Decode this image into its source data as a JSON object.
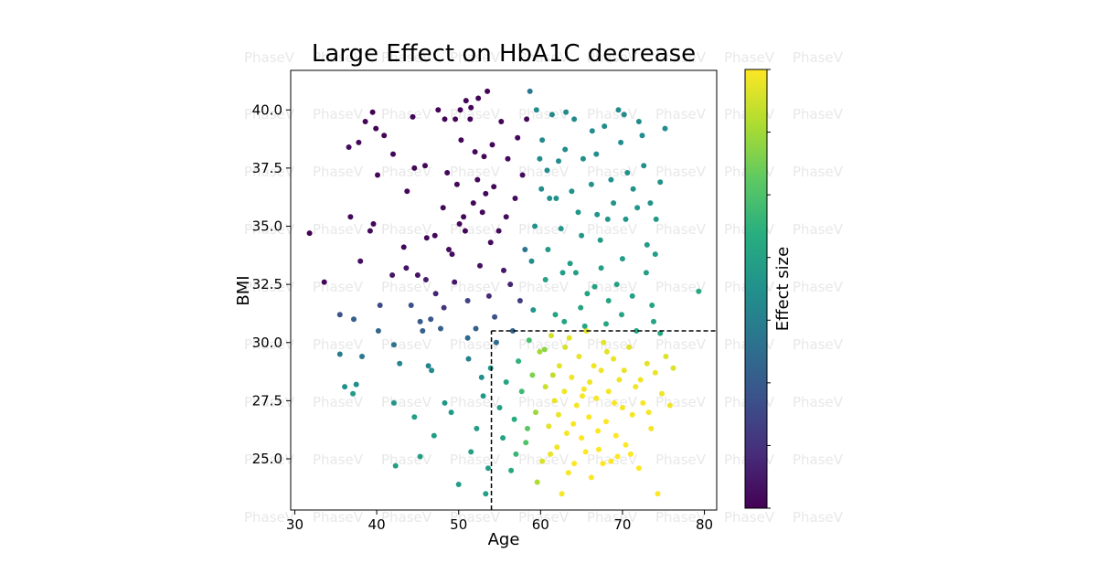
{
  "chart_data": {
    "type": "scatter",
    "title": "Large Effect on HbA1C decrease",
    "xlabel": "Age",
    "ylabel": "BMI",
    "xlim": [
      29.5,
      81.5
    ],
    "ylim": [
      22.8,
      41.7
    ],
    "xticks": [
      30,
      40,
      50,
      60,
      70,
      80
    ],
    "xtick_labels": [
      "30",
      "40",
      "50",
      "60",
      "70",
      "80"
    ],
    "yticks": [
      25.0,
      27.5,
      30.0,
      32.5,
      35.0,
      37.5,
      40.0
    ],
    "ytick_labels": [
      "25.0",
      "27.5",
      "30.0",
      "32.5",
      "35.0",
      "37.5",
      "40.0"
    ],
    "colorbar_label": "Effect size",
    "colormap": "viridis",
    "threshold_lines": {
      "age_min": 54,
      "bmi_max": 30.5
    },
    "watermark": "PhaseV",
    "points": [
      {
        "x": 31.8,
        "y": 34.7,
        "c": 0.0
      },
      {
        "x": 33.6,
        "y": 32.6,
        "c": 0.02
      },
      {
        "x": 35.5,
        "y": 31.2,
        "c": 0.25
      },
      {
        "x": 35.5,
        "y": 29.5,
        "c": 0.42
      },
      {
        "x": 36.1,
        "y": 28.1,
        "c": 0.5
      },
      {
        "x": 36.6,
        "y": 38.4,
        "c": 0.03
      },
      {
        "x": 36.8,
        "y": 35.4,
        "c": 0.02
      },
      {
        "x": 37.1,
        "y": 27.8,
        "c": 0.55
      },
      {
        "x": 37.5,
        "y": 28.2,
        "c": 0.48
      },
      {
        "x": 37.2,
        "y": 31.0,
        "c": 0.3
      },
      {
        "x": 37.8,
        "y": 38.6,
        "c": 0.02
      },
      {
        "x": 38.0,
        "y": 33.5,
        "c": 0.04
      },
      {
        "x": 38.2,
        "y": 29.4,
        "c": 0.4
      },
      {
        "x": 38.6,
        "y": 39.5,
        "c": 0.01
      },
      {
        "x": 39.2,
        "y": 34.8,
        "c": 0.03
      },
      {
        "x": 39.5,
        "y": 39.9,
        "c": 0.0
      },
      {
        "x": 39.6,
        "y": 35.1,
        "c": 0.02
      },
      {
        "x": 39.9,
        "y": 39.2,
        "c": 0.01
      },
      {
        "x": 40.2,
        "y": 30.5,
        "c": 0.33
      },
      {
        "x": 40.1,
        "y": 37.2,
        "c": 0.02
      },
      {
        "x": 40.4,
        "y": 31.6,
        "c": 0.22
      },
      {
        "x": 40.9,
        "y": 38.9,
        "c": 0.01
      },
      {
        "x": 41.9,
        "y": 32.9,
        "c": 0.06
      },
      {
        "x": 42.0,
        "y": 38.1,
        "c": 0.02
      },
      {
        "x": 42.1,
        "y": 29.9,
        "c": 0.38
      },
      {
        "x": 42.1,
        "y": 27.4,
        "c": 0.52
      },
      {
        "x": 42.3,
        "y": 24.7,
        "c": 0.56
      },
      {
        "x": 42.8,
        "y": 29.1,
        "c": 0.46
      },
      {
        "x": 43.3,
        "y": 34.1,
        "c": 0.02
      },
      {
        "x": 43.6,
        "y": 33.2,
        "c": 0.06
      },
      {
        "x": 43.7,
        "y": 36.5,
        "c": 0.02
      },
      {
        "x": 44.2,
        "y": 31.6,
        "c": 0.24
      },
      {
        "x": 44.4,
        "y": 39.7,
        "c": 0.01
      },
      {
        "x": 44.6,
        "y": 37.5,
        "c": 0.02
      },
      {
        "x": 45.0,
        "y": 32.9,
        "c": 0.05
      },
      {
        "x": 45.3,
        "y": 30.9,
        "c": 0.28
      },
      {
        "x": 45.6,
        "y": 30.5,
        "c": 0.3
      },
      {
        "x": 45.9,
        "y": 37.6,
        "c": 0.02
      },
      {
        "x": 46.0,
        "y": 32.7,
        "c": 0.08
      },
      {
        "x": 46.1,
        "y": 34.5,
        "c": 0.02
      },
      {
        "x": 46.3,
        "y": 29.0,
        "c": 0.45
      },
      {
        "x": 46.6,
        "y": 31.0,
        "c": 0.26
      },
      {
        "x": 46.7,
        "y": 28.8,
        "c": 0.47
      },
      {
        "x": 47.1,
        "y": 34.6,
        "c": 0.02
      },
      {
        "x": 47.2,
        "y": 32.1,
        "c": 0.1
      },
      {
        "x": 47.5,
        "y": 40.0,
        "c": 0.01
      },
      {
        "x": 47.8,
        "y": 30.6,
        "c": 0.3
      },
      {
        "x": 48.1,
        "y": 35.8,
        "c": 0.02
      },
      {
        "x": 48.2,
        "y": 31.5,
        "c": 0.15
      },
      {
        "x": 48.3,
        "y": 39.6,
        "c": 0.01
      },
      {
        "x": 48.3,
        "y": 27.4,
        "c": 0.52
      },
      {
        "x": 48.6,
        "y": 37.3,
        "c": 0.02
      },
      {
        "x": 48.8,
        "y": 34.0,
        "c": 0.03
      },
      {
        "x": 49.2,
        "y": 33.8,
        "c": 0.04
      },
      {
        "x": 49.5,
        "y": 32.6,
        "c": 0.06
      },
      {
        "x": 49.6,
        "y": 39.6,
        "c": 0.01
      },
      {
        "x": 49.8,
        "y": 36.8,
        "c": 0.02
      },
      {
        "x": 50.1,
        "y": 35.1,
        "c": 0.02
      },
      {
        "x": 50.2,
        "y": 40.0,
        "c": 0.01
      },
      {
        "x": 50.3,
        "y": 38.7,
        "c": 0.02
      },
      {
        "x": 50.6,
        "y": 35.4,
        "c": 0.02
      },
      {
        "x": 50.8,
        "y": 34.8,
        "c": 0.02
      },
      {
        "x": 50.9,
        "y": 40.4,
        "c": 0.01
      },
      {
        "x": 51.1,
        "y": 31.8,
        "c": 0.2
      },
      {
        "x": 51.1,
        "y": 30.2,
        "c": 0.34
      },
      {
        "x": 51.2,
        "y": 29.3,
        "c": 0.43
      },
      {
        "x": 51.4,
        "y": 39.6,
        "c": 0.01
      },
      {
        "x": 51.5,
        "y": 40.1,
        "c": 0.01
      },
      {
        "x": 51.8,
        "y": 36.0,
        "c": 0.02
      },
      {
        "x": 52.0,
        "y": 38.2,
        "c": 0.02
      },
      {
        "x": 52.1,
        "y": 30.6,
        "c": 0.3
      },
      {
        "x": 52.3,
        "y": 37.0,
        "c": 0.02
      },
      {
        "x": 52.4,
        "y": 40.5,
        "c": 0.01
      },
      {
        "x": 52.6,
        "y": 33.3,
        "c": 0.04
      },
      {
        "x": 52.8,
        "y": 28.5,
        "c": 0.49
      },
      {
        "x": 52.9,
        "y": 35.6,
        "c": 0.02
      },
      {
        "x": 53.1,
        "y": 38.0,
        "c": 0.02
      },
      {
        "x": 53.3,
        "y": 36.4,
        "c": 0.02
      },
      {
        "x": 53.5,
        "y": 40.8,
        "c": 0.01
      },
      {
        "x": 53.7,
        "y": 32.0,
        "c": 0.12
      },
      {
        "x": 53.9,
        "y": 34.3,
        "c": 0.03
      },
      {
        "x": 54.1,
        "y": 38.5,
        "c": 0.02
      },
      {
        "x": 54.3,
        "y": 36.7,
        "c": 0.02
      },
      {
        "x": 54.4,
        "y": 31.1,
        "c": 0.25
      },
      {
        "x": 54.6,
        "y": 30.0,
        "c": 0.35
      },
      {
        "x": 54.9,
        "y": 34.8,
        "c": 0.03
      },
      {
        "x": 55.2,
        "y": 39.5,
        "c": 0.01
      },
      {
        "x": 55.5,
        "y": 33.1,
        "c": 0.06
      },
      {
        "x": 55.8,
        "y": 35.4,
        "c": 0.03
      },
      {
        "x": 56.0,
        "y": 37.9,
        "c": 0.02
      },
      {
        "x": 56.3,
        "y": 32.5,
        "c": 0.1
      },
      {
        "x": 56.6,
        "y": 30.5,
        "c": 0.32
      },
      {
        "x": 56.9,
        "y": 36.2,
        "c": 0.03
      },
      {
        "x": 57.2,
        "y": 38.8,
        "c": 0.02
      },
      {
        "x": 57.5,
        "y": 31.8,
        "c": 0.18
      },
      {
        "x": 57.8,
        "y": 37.2,
        "c": 0.03
      },
      {
        "x": 58.1,
        "y": 34.0,
        "c": 0.38
      },
      {
        "x": 58.3,
        "y": 39.6,
        "c": 0.02
      },
      {
        "x": 58.7,
        "y": 40.8,
        "c": 0.4
      },
      {
        "x": 58.9,
        "y": 33.5,
        "c": 0.48
      },
      {
        "x": 59.1,
        "y": 31.4,
        "c": 0.52
      },
      {
        "x": 50.0,
        "y": 23.9,
        "c": 0.55
      },
      {
        "x": 51.5,
        "y": 25.3,
        "c": 0.56
      },
      {
        "x": 52.2,
        "y": 26.3,
        "c": 0.55
      },
      {
        "x": 53.0,
        "y": 27.7,
        "c": 0.54
      },
      {
        "x": 53.6,
        "y": 24.6,
        "c": 0.56
      },
      {
        "x": 53.3,
        "y": 23.5,
        "c": 0.56
      },
      {
        "x": 53.9,
        "y": 28.9,
        "c": 0.52
      },
      {
        "x": 44.6,
        "y": 26.8,
        "c": 0.55
      },
      {
        "x": 45.3,
        "y": 25.1,
        "c": 0.56
      },
      {
        "x": 47.0,
        "y": 26.0,
        "c": 0.55
      },
      {
        "x": 49.1,
        "y": 27.0,
        "c": 0.54
      },
      {
        "x": 55.0,
        "y": 27.2,
        "c": 0.56
      },
      {
        "x": 55.4,
        "y": 25.9,
        "c": 0.58
      },
      {
        "x": 55.8,
        "y": 28.3,
        "c": 0.58
      },
      {
        "x": 56.4,
        "y": 24.5,
        "c": 0.6
      },
      {
        "x": 56.8,
        "y": 26.7,
        "c": 0.62
      },
      {
        "x": 57.3,
        "y": 29.2,
        "c": 0.64
      },
      {
        "x": 57.7,
        "y": 27.9,
        "c": 0.68
      },
      {
        "x": 58.2,
        "y": 25.7,
        "c": 0.72
      },
      {
        "x": 58.6,
        "y": 30.1,
        "c": 0.7
      },
      {
        "x": 59.0,
        "y": 28.6,
        "c": 0.8
      },
      {
        "x": 59.4,
        "y": 27.0,
        "c": 0.85
      },
      {
        "x": 59.9,
        "y": 29.6,
        "c": 0.86
      },
      {
        "x": 60.2,
        "y": 24.9,
        "c": 0.94
      },
      {
        "x": 60.6,
        "y": 28.1,
        "c": 0.92
      },
      {
        "x": 61.0,
        "y": 26.4,
        "c": 0.96
      },
      {
        "x": 61.3,
        "y": 30.3,
        "c": 0.93
      },
      {
        "x": 61.7,
        "y": 27.5,
        "c": 0.97
      },
      {
        "x": 62.0,
        "y": 25.5,
        "c": 0.98
      },
      {
        "x": 62.3,
        "y": 29.0,
        "c": 0.96
      },
      {
        "x": 62.6,
        "y": 23.5,
        "c": 0.99
      },
      {
        "x": 62.9,
        "y": 27.9,
        "c": 0.98
      },
      {
        "x": 63.2,
        "y": 26.1,
        "c": 0.99
      },
      {
        "x": 63.5,
        "y": 30.2,
        "c": 0.96
      },
      {
        "x": 63.8,
        "y": 28.5,
        "c": 0.98
      },
      {
        "x": 64.1,
        "y": 24.8,
        "c": 1.0
      },
      {
        "x": 64.4,
        "y": 27.3,
        "c": 0.99
      },
      {
        "x": 64.7,
        "y": 29.4,
        "c": 0.97
      },
      {
        "x": 65.0,
        "y": 25.9,
        "c": 1.0
      },
      {
        "x": 65.3,
        "y": 28.0,
        "c": 0.99
      },
      {
        "x": 65.6,
        "y": 30.5,
        "c": 0.96
      },
      {
        "x": 65.9,
        "y": 26.8,
        "c": 1.0
      },
      {
        "x": 66.2,
        "y": 24.2,
        "c": 1.0
      },
      {
        "x": 66.5,
        "y": 29.0,
        "c": 0.98
      },
      {
        "x": 66.8,
        "y": 27.6,
        "c": 0.99
      },
      {
        "x": 67.1,
        "y": 25.4,
        "c": 1.0
      },
      {
        "x": 67.4,
        "y": 28.8,
        "c": 0.98
      },
      {
        "x": 67.7,
        "y": 30.0,
        "c": 0.96
      },
      {
        "x": 68.0,
        "y": 26.6,
        "c": 1.0
      },
      {
        "x": 68.3,
        "y": 27.9,
        "c": 0.99
      },
      {
        "x": 68.6,
        "y": 24.9,
        "c": 1.0
      },
      {
        "x": 68.9,
        "y": 29.3,
        "c": 0.97
      },
      {
        "x": 69.2,
        "y": 26.0,
        "c": 1.0
      },
      {
        "x": 69.6,
        "y": 28.4,
        "c": 0.98
      },
      {
        "x": 70.0,
        "y": 27.2,
        "c": 0.99
      },
      {
        "x": 70.4,
        "y": 25.6,
        "c": 1.0
      },
      {
        "x": 70.8,
        "y": 29.8,
        "c": 0.96
      },
      {
        "x": 71.2,
        "y": 26.9,
        "c": 0.99
      },
      {
        "x": 71.6,
        "y": 28.1,
        "c": 0.98
      },
      {
        "x": 72.0,
        "y": 24.6,
        "c": 1.0
      },
      {
        "x": 72.5,
        "y": 27.4,
        "c": 0.99
      },
      {
        "x": 73.0,
        "y": 29.1,
        "c": 0.96
      },
      {
        "x": 73.5,
        "y": 26.3,
        "c": 0.99
      },
      {
        "x": 74.0,
        "y": 28.7,
        "c": 0.97
      },
      {
        "x": 74.3,
        "y": 23.5,
        "c": 1.0
      },
      {
        "x": 74.8,
        "y": 27.8,
        "c": 0.98
      },
      {
        "x": 75.3,
        "y": 29.4,
        "c": 0.95
      },
      {
        "x": 75.8,
        "y": 27.3,
        "c": 0.98
      },
      {
        "x": 76.2,
        "y": 28.9,
        "c": 0.95
      },
      {
        "x": 60.5,
        "y": 29.7,
        "c": 0.82
      },
      {
        "x": 61.5,
        "y": 28.6,
        "c": 0.9
      },
      {
        "x": 62.2,
        "y": 26.9,
        "c": 0.97
      },
      {
        "x": 63.0,
        "y": 29.8,
        "c": 0.94
      },
      {
        "x": 64.0,
        "y": 26.5,
        "c": 0.99
      },
      {
        "x": 65.1,
        "y": 27.7,
        "c": 0.99
      },
      {
        "x": 66.0,
        "y": 28.3,
        "c": 0.98
      },
      {
        "x": 67.0,
        "y": 26.2,
        "c": 1.0
      },
      {
        "x": 68.1,
        "y": 29.6,
        "c": 0.96
      },
      {
        "x": 69.0,
        "y": 27.4,
        "c": 0.99
      },
      {
        "x": 70.2,
        "y": 28.8,
        "c": 0.97
      },
      {
        "x": 71.0,
        "y": 25.2,
        "c": 1.0
      },
      {
        "x": 72.2,
        "y": 28.4,
        "c": 0.98
      },
      {
        "x": 73.2,
        "y": 27.0,
        "c": 0.99
      },
      {
        "x": 61.2,
        "y": 25.2,
        "c": 0.97
      },
      {
        "x": 63.4,
        "y": 24.4,
        "c": 0.99
      },
      {
        "x": 65.5,
        "y": 25.3,
        "c": 1.0
      },
      {
        "x": 67.6,
        "y": 24.8,
        "c": 1.0
      },
      {
        "x": 69.4,
        "y": 25.1,
        "c": 1.0
      },
      {
        "x": 58.4,
        "y": 26.3,
        "c": 0.74
      },
      {
        "x": 59.6,
        "y": 24.0,
        "c": 0.88
      },
      {
        "x": 57.0,
        "y": 25.2,
        "c": 0.66
      },
      {
        "x": 59.5,
        "y": 40.0,
        "c": 0.48
      },
      {
        "x": 60.2,
        "y": 38.7,
        "c": 0.47
      },
      {
        "x": 60.8,
        "y": 37.4,
        "c": 0.48
      },
      {
        "x": 61.4,
        "y": 39.8,
        "c": 0.47
      },
      {
        "x": 61.9,
        "y": 36.2,
        "c": 0.5
      },
      {
        "x": 62.5,
        "y": 34.9,
        "c": 0.52
      },
      {
        "x": 63.0,
        "y": 38.3,
        "c": 0.48
      },
      {
        "x": 63.6,
        "y": 33.4,
        "c": 0.55
      },
      {
        "x": 64.1,
        "y": 39.6,
        "c": 0.47
      },
      {
        "x": 64.6,
        "y": 35.6,
        "c": 0.52
      },
      {
        "x": 65.2,
        "y": 37.9,
        "c": 0.49
      },
      {
        "x": 65.7,
        "y": 32.1,
        "c": 0.58
      },
      {
        "x": 66.2,
        "y": 36.8,
        "c": 0.51
      },
      {
        "x": 66.8,
        "y": 38.1,
        "c": 0.49
      },
      {
        "x": 67.3,
        "y": 34.4,
        "c": 0.54
      },
      {
        "x": 67.8,
        "y": 39.3,
        "c": 0.48
      },
      {
        "x": 68.3,
        "y": 31.8,
        "c": 0.58
      },
      {
        "x": 68.9,
        "y": 36.0,
        "c": 0.52
      },
      {
        "x": 69.5,
        "y": 40.0,
        "c": 0.47
      },
      {
        "x": 70.0,
        "y": 33.6,
        "c": 0.55
      },
      {
        "x": 70.6,
        "y": 37.3,
        "c": 0.5
      },
      {
        "x": 71.2,
        "y": 32.0,
        "c": 0.57
      },
      {
        "x": 71.8,
        "y": 35.8,
        "c": 0.53
      },
      {
        "x": 72.4,
        "y": 38.9,
        "c": 0.48
      },
      {
        "x": 73.0,
        "y": 34.2,
        "c": 0.54
      },
      {
        "x": 73.6,
        "y": 31.6,
        "c": 0.58
      },
      {
        "x": 74.1,
        "y": 35.3,
        "c": 0.53
      },
      {
        "x": 74.6,
        "y": 36.9,
        "c": 0.51
      },
      {
        "x": 75.2,
        "y": 39.2,
        "c": 0.48
      },
      {
        "x": 79.3,
        "y": 32.2,
        "c": 0.6
      },
      {
        "x": 60.6,
        "y": 32.7,
        "c": 0.57
      },
      {
        "x": 61.8,
        "y": 31.2,
        "c": 0.58
      },
      {
        "x": 62.9,
        "y": 30.9,
        "c": 0.58
      },
      {
        "x": 64.3,
        "y": 33.0,
        "c": 0.56
      },
      {
        "x": 65.4,
        "y": 30.7,
        "c": 0.59
      },
      {
        "x": 66.6,
        "y": 32.4,
        "c": 0.57
      },
      {
        "x": 68.0,
        "y": 30.8,
        "c": 0.59
      },
      {
        "x": 69.3,
        "y": 32.5,
        "c": 0.57
      },
      {
        "x": 70.4,
        "y": 35.3,
        "c": 0.52
      },
      {
        "x": 71.7,
        "y": 30.5,
        "c": 0.59
      },
      {
        "x": 72.9,
        "y": 33.0,
        "c": 0.55
      },
      {
        "x": 73.8,
        "y": 30.9,
        "c": 0.58
      },
      {
        "x": 59.3,
        "y": 35.0,
        "c": 0.5
      },
      {
        "x": 60.1,
        "y": 36.6,
        "c": 0.48
      },
      {
        "x": 62.2,
        "y": 37.8,
        "c": 0.48
      },
      {
        "x": 63.8,
        "y": 36.5,
        "c": 0.5
      },
      {
        "x": 65.0,
        "y": 34.6,
        "c": 0.53
      },
      {
        "x": 66.9,
        "y": 35.5,
        "c": 0.52
      },
      {
        "x": 68.6,
        "y": 37.0,
        "c": 0.5
      },
      {
        "x": 69.8,
        "y": 38.6,
        "c": 0.48
      },
      {
        "x": 71.3,
        "y": 36.6,
        "c": 0.51
      },
      {
        "x": 72.6,
        "y": 37.6,
        "c": 0.49
      },
      {
        "x": 74.0,
        "y": 33.8,
        "c": 0.55
      },
      {
        "x": 60.9,
        "y": 34.0,
        "c": 0.53
      },
      {
        "x": 62.7,
        "y": 33.0,
        "c": 0.55
      },
      {
        "x": 64.9,
        "y": 31.5,
        "c": 0.58
      },
      {
        "x": 67.4,
        "y": 33.2,
        "c": 0.56
      },
      {
        "x": 69.9,
        "y": 31.2,
        "c": 0.58
      },
      {
        "x": 74.6,
        "y": 30.4,
        "c": 0.6
      },
      {
        "x": 61.1,
        "y": 36.2,
        "c": 0.5
      },
      {
        "x": 63.1,
        "y": 39.9,
        "c": 0.47
      },
      {
        "x": 66.3,
        "y": 39.1,
        "c": 0.48
      },
      {
        "x": 70.2,
        "y": 39.8,
        "c": 0.47
      },
      {
        "x": 72.0,
        "y": 39.5,
        "c": 0.47
      },
      {
        "x": 73.4,
        "y": 36.0,
        "c": 0.51
      },
      {
        "x": 68.2,
        "y": 35.3,
        "c": 0.53
      },
      {
        "x": 59.9,
        "y": 37.9,
        "c": 0.48
      }
    ]
  }
}
